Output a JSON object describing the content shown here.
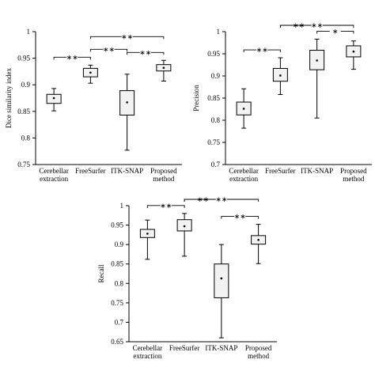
{
  "chart_data": [
    {
      "type": "box",
      "ylabel": "Dice similarity index",
      "ylim": [
        0.75,
        1
      ],
      "yticks": [
        "0.75",
        "0.8",
        "0.85",
        "0.9",
        "0.95",
        "1"
      ],
      "categories": [
        [
          "Cerebellar",
          "extraction"
        ],
        [
          "FreeSurfer"
        ],
        [
          "ITK-SNAP"
        ],
        [
          "Proposed",
          "method"
        ]
      ],
      "boxes": [
        {
          "min": 0.851,
          "q1": 0.865,
          "mean": 0.875,
          "q3": 0.882,
          "max": 0.893
        },
        {
          "min": 0.903,
          "q1": 0.915,
          "mean": 0.923,
          "q3": 0.931,
          "max": 0.937
        },
        {
          "min": 0.777,
          "q1": 0.843,
          "mean": 0.867,
          "q3": 0.889,
          "max": 0.92
        },
        {
          "min": 0.907,
          "q1": 0.926,
          "mean": 0.932,
          "q3": 0.938,
          "max": 0.946
        }
      ],
      "significance": [
        {
          "from": 0,
          "to": 1,
          "label": "∗∗"
        },
        {
          "from": 1,
          "to": 2,
          "label": "∗∗"
        },
        {
          "from": 1,
          "to": 3,
          "label": "∗∗"
        },
        {
          "from": 2,
          "to": 3,
          "label": "∗∗"
        }
      ]
    },
    {
      "type": "box",
      "ylabel": "Precision",
      "ylim": [
        0.7,
        1
      ],
      "yticks": [
        "0.7",
        "0.75",
        "0.8",
        "0.85",
        "0.9",
        "0.95",
        "1"
      ],
      "categories": [
        [
          "Cerebellar",
          "extraction"
        ],
        [
          "FreeSurfer"
        ],
        [
          "ITK-SNAP"
        ],
        [
          "Proposed",
          "method"
        ]
      ],
      "boxes": [
        {
          "min": 0.782,
          "q1": 0.812,
          "mean": 0.826,
          "q3": 0.841,
          "max": 0.871
        },
        {
          "min": 0.858,
          "q1": 0.888,
          "mean": 0.901,
          "q3": 0.917,
          "max": 0.941
        },
        {
          "min": 0.805,
          "q1": 0.914,
          "mean": 0.935,
          "q3": 0.958,
          "max": 0.983
        },
        {
          "min": 0.915,
          "q1": 0.943,
          "mean": 0.955,
          "q3": 0.968,
          "max": 0.979
        }
      ],
      "significance": [
        {
          "from": 0,
          "to": 1,
          "label": "∗∗"
        },
        {
          "from": 1,
          "to": 2,
          "label": "∗∗"
        },
        {
          "from": 1,
          "to": 3,
          "label": "∗∗"
        },
        {
          "from": 2,
          "to": 3,
          "label": "∗"
        }
      ]
    },
    {
      "type": "box",
      "ylabel": "Recall",
      "ylim": [
        0.65,
        1
      ],
      "yticks": [
        "0.65",
        "0.7",
        "0.75",
        "0.8",
        "0.85",
        "0.9",
        "0.95",
        "1"
      ],
      "categories": [
        [
          "Cerebellar",
          "extraction"
        ],
        [
          "FreeSurfer"
        ],
        [
          "ITK-SNAP"
        ],
        [
          "Proposed",
          "method"
        ]
      ],
      "boxes": [
        {
          "min": 0.862,
          "q1": 0.918,
          "mean": 0.928,
          "q3": 0.939,
          "max": 0.963
        },
        {
          "min": 0.87,
          "q1": 0.935,
          "mean": 0.947,
          "q3": 0.964,
          "max": 0.98
        },
        {
          "min": 0.66,
          "q1": 0.763,
          "mean": 0.813,
          "q3": 0.85,
          "max": 0.9
        },
        {
          "min": 0.851,
          "q1": 0.901,
          "mean": 0.912,
          "q3": 0.923,
          "max": 0.952
        }
      ],
      "significance": [
        {
          "from": 0,
          "to": 1,
          "label": "∗∗"
        },
        {
          "from": 1,
          "to": 2,
          "label": "∗∗"
        },
        {
          "from": 1,
          "to": 3,
          "label": "∗∗"
        },
        {
          "from": 2,
          "to": 3,
          "label": "∗∗"
        }
      ]
    }
  ]
}
